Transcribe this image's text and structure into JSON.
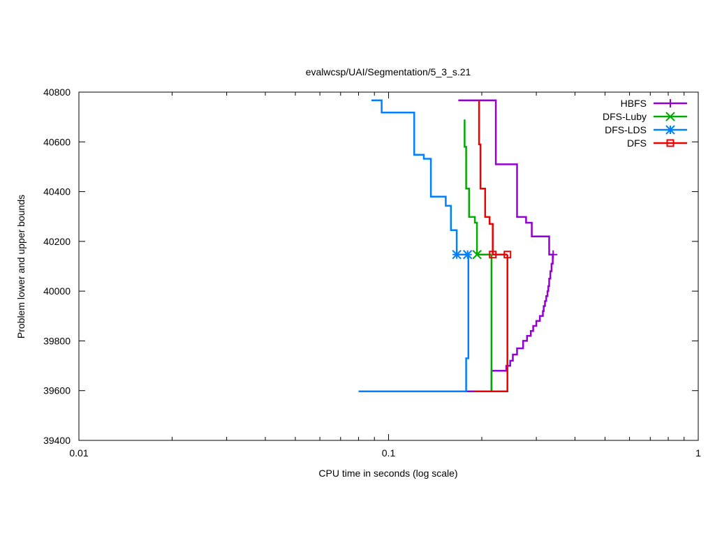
{
  "chart_data": {
    "type": "line",
    "title": "evalwcsp/UAI/Segmentation/5_3_s.21",
    "xlabel": "CPU time in seconds (log scale)",
    "ylabel": "Problem lower and upper bounds",
    "xscale": "log",
    "xlim": [
      0.01,
      1
    ],
    "ylim": [
      39400,
      40800
    ],
    "x_ticks": [
      "0.01",
      "0.1",
      "1"
    ],
    "y_ticks": [
      "39400",
      "39600",
      "39800",
      "40000",
      "40200",
      "40400",
      "40600",
      "40800"
    ],
    "grid": false,
    "legend_position": "top-right",
    "series": [
      {
        "name": "HBFS",
        "color": "#9400d3",
        "marker": "plus",
        "marker_points": [
          [
            0.34,
            40147
          ]
        ],
        "upper": [
          [
            0.168,
            40767
          ],
          [
            0.222,
            40767
          ],
          [
            0.222,
            40510
          ],
          [
            0.26,
            40510
          ],
          [
            0.26,
            40298
          ],
          [
            0.278,
            40298
          ],
          [
            0.278,
            40275
          ],
          [
            0.29,
            40275
          ],
          [
            0.29,
            40220
          ],
          [
            0.33,
            40220
          ],
          [
            0.33,
            40147
          ],
          [
            0.342,
            40147
          ]
        ],
        "lower": [
          [
            0.165,
            39597
          ],
          [
            0.215,
            39597
          ],
          [
            0.215,
            39680
          ],
          [
            0.24,
            39680
          ],
          [
            0.24,
            39700
          ],
          [
            0.247,
            39700
          ],
          [
            0.247,
            39720
          ],
          [
            0.252,
            39720
          ],
          [
            0.252,
            39745
          ],
          [
            0.26,
            39745
          ],
          [
            0.26,
            39770
          ],
          [
            0.272,
            39770
          ],
          [
            0.272,
            39800
          ],
          [
            0.28,
            39800
          ],
          [
            0.28,
            39820
          ],
          [
            0.288,
            39820
          ],
          [
            0.288,
            39840
          ],
          [
            0.293,
            39840
          ],
          [
            0.293,
            39860
          ],
          [
            0.3,
            39860
          ],
          [
            0.3,
            39880
          ],
          [
            0.308,
            39880
          ],
          [
            0.308,
            39900
          ],
          [
            0.315,
            39900
          ],
          [
            0.315,
            39920
          ],
          [
            0.317,
            39920
          ],
          [
            0.317,
            39940
          ],
          [
            0.32,
            39940
          ],
          [
            0.32,
            39960
          ],
          [
            0.323,
            39960
          ],
          [
            0.323,
            39980
          ],
          [
            0.326,
            39980
          ],
          [
            0.326,
            40000
          ],
          [
            0.328,
            40000
          ],
          [
            0.328,
            40020
          ],
          [
            0.33,
            40020
          ],
          [
            0.33,
            40050
          ],
          [
            0.333,
            40050
          ],
          [
            0.333,
            40080
          ],
          [
            0.336,
            40080
          ],
          [
            0.336,
            40110
          ],
          [
            0.339,
            40110
          ],
          [
            0.339,
            40147
          ]
        ]
      },
      {
        "name": "DFS-Luby",
        "color": "#00aa00",
        "marker": "cross",
        "marker_points": [
          [
            0.193,
            40147
          ]
        ],
        "upper": [
          [
            0.176,
            40690
          ],
          [
            0.176,
            40580
          ],
          [
            0.178,
            40580
          ],
          [
            0.178,
            40412
          ],
          [
            0.182,
            40412
          ],
          [
            0.182,
            40298
          ],
          [
            0.19,
            40298
          ],
          [
            0.19,
            40275
          ],
          [
            0.193,
            40275
          ],
          [
            0.193,
            40147
          ],
          [
            0.215,
            40147
          ]
        ],
        "lower": [
          [
            0.212,
            39597
          ],
          [
            0.215,
            39597
          ],
          [
            0.215,
            40147
          ]
        ]
      },
      {
        "name": "DFS-LDS",
        "color": "#0080ff",
        "marker": "star",
        "marker_points": [
          [
            0.166,
            40147
          ],
          [
            0.18,
            40147
          ]
        ],
        "upper": [
          [
            0.088,
            40767
          ],
          [
            0.095,
            40767
          ],
          [
            0.095,
            40718
          ],
          [
            0.121,
            40718
          ],
          [
            0.121,
            40548
          ],
          [
            0.13,
            40548
          ],
          [
            0.13,
            40532
          ],
          [
            0.137,
            40532
          ],
          [
            0.137,
            40380
          ],
          [
            0.153,
            40380
          ],
          [
            0.153,
            40343
          ],
          [
            0.159,
            40343
          ],
          [
            0.159,
            40245
          ],
          [
            0.166,
            40245
          ],
          [
            0.166,
            40147
          ],
          [
            0.18,
            40147
          ]
        ],
        "lower": [
          [
            0.08,
            39597
          ],
          [
            0.178,
            39597
          ],
          [
            0.178,
            39730
          ],
          [
            0.181,
            39730
          ],
          [
            0.181,
            40147
          ]
        ]
      },
      {
        "name": "DFS",
        "color": "#ee0000",
        "marker": "square",
        "marker_points": [
          [
            0.217,
            40147
          ],
          [
            0.242,
            40147
          ]
        ],
        "upper": [
          [
            0.196,
            40767
          ],
          [
            0.196,
            40590
          ],
          [
            0.198,
            40590
          ],
          [
            0.198,
            40412
          ],
          [
            0.205,
            40412
          ],
          [
            0.205,
            40298
          ],
          [
            0.212,
            40298
          ],
          [
            0.212,
            40270
          ],
          [
            0.217,
            40270
          ],
          [
            0.217,
            40147
          ],
          [
            0.242,
            40147
          ]
        ],
        "lower": [
          [
            0.19,
            39597
          ],
          [
            0.242,
            39597
          ],
          [
            0.242,
            40147
          ]
        ]
      }
    ]
  }
}
